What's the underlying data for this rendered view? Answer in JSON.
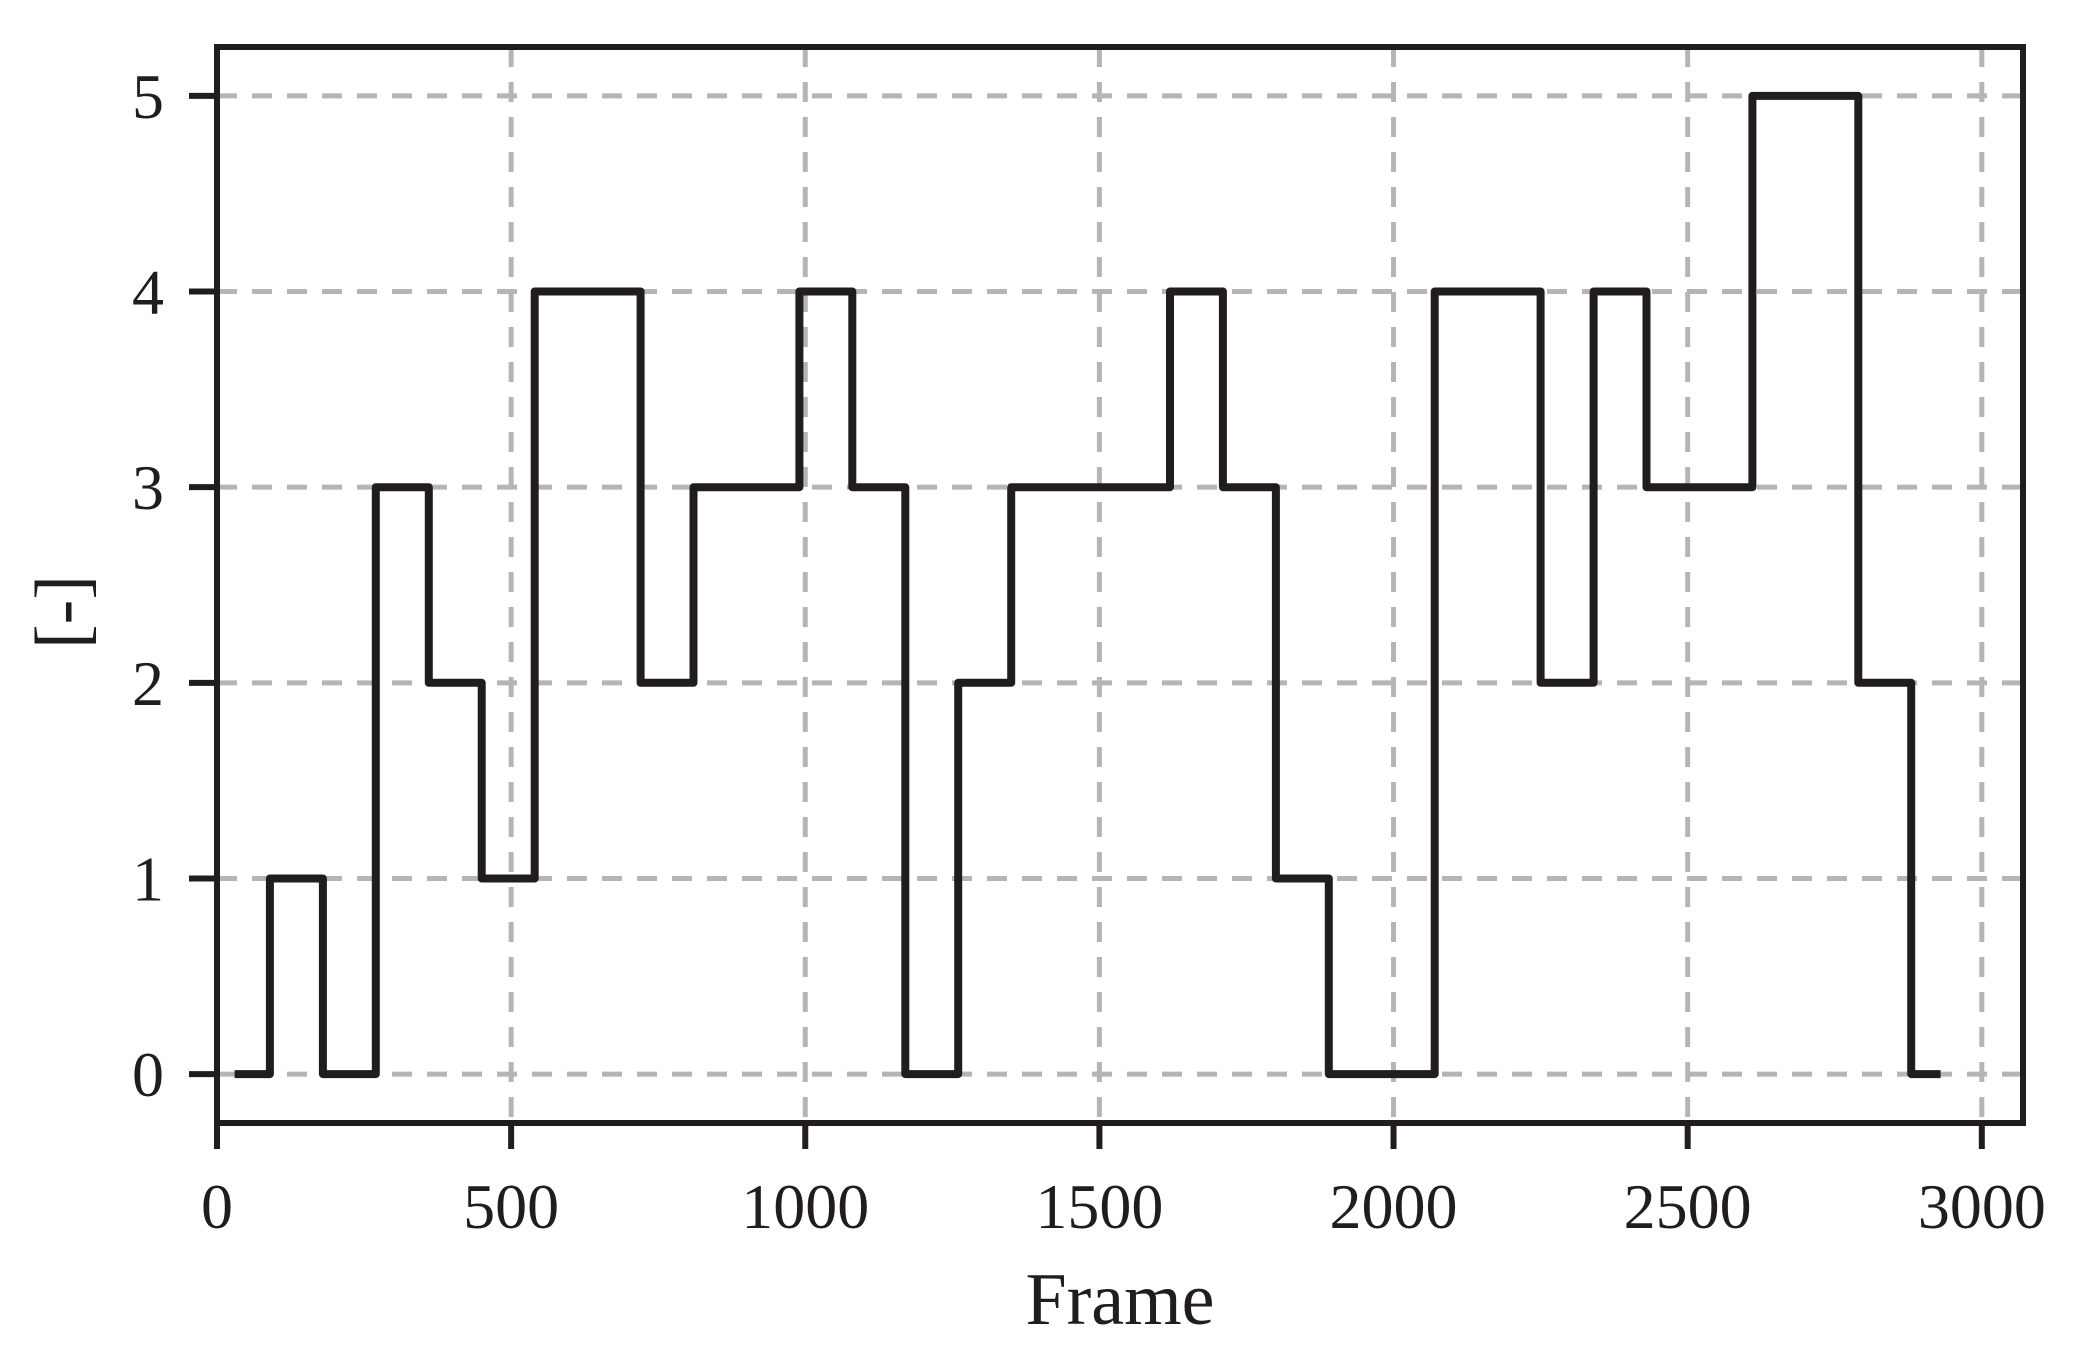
{
  "chart_data": {
    "type": "step",
    "step_style": "post",
    "title": "",
    "xlabel": "Frame",
    "ylabel": "[-]",
    "x": [
      30,
      90,
      180,
      270,
      360,
      450,
      540,
      720,
      810,
      990,
      1080,
      1170,
      1260,
      1350,
      1620,
      1710,
      1800,
      1890,
      2070,
      2250,
      2340,
      2430,
      2610,
      2790,
      2880,
      2930
    ],
    "y": [
      0,
      1,
      0,
      3,
      2,
      1,
      4,
      2,
      3,
      4,
      3,
      0,
      2,
      3,
      4,
      3,
      1,
      0,
      4,
      2,
      4,
      3,
      5,
      2,
      0,
      0
    ],
    "xticks": [
      0,
      500,
      1000,
      1500,
      2000,
      2500,
      3000
    ],
    "yticks": [
      0,
      1,
      2,
      3,
      4,
      5
    ],
    "xlim": [
      0,
      3070
    ],
    "ylim": [
      -0.25,
      5.25
    ],
    "grid": true,
    "grid_style": "dashed",
    "legend": null,
    "colors": {
      "line": "#211d1e",
      "grid": "#b5b5b7",
      "axis": "#211d1e",
      "tick_label": "#211d1e",
      "background": "#ffffff"
    }
  }
}
